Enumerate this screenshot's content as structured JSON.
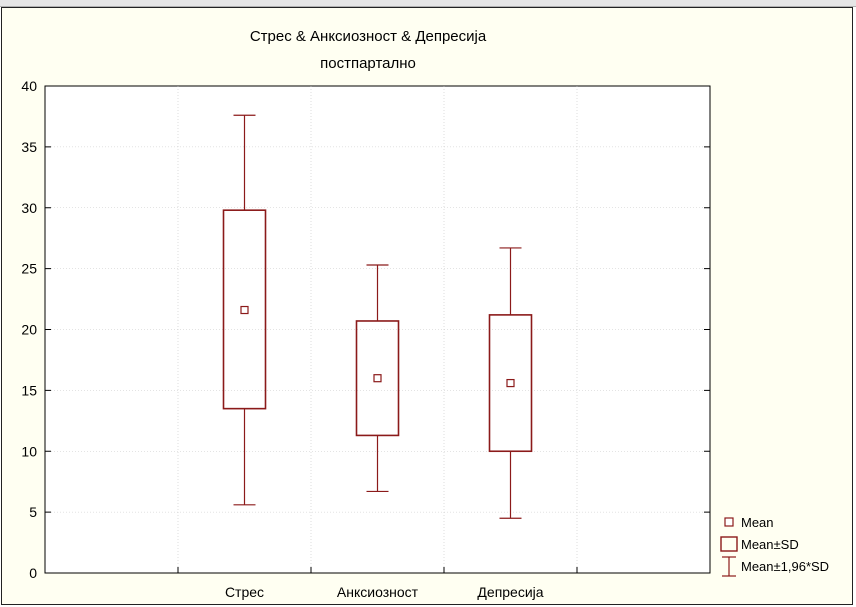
{
  "chart_data": {
    "type": "box",
    "title": "Стрес & Анксиозност & Депресија",
    "subtitle": "постпартално",
    "xlabel": "",
    "ylabel": "",
    "ylim": [
      0,
      40
    ],
    "yticks": [
      0,
      5,
      10,
      15,
      20,
      25,
      30,
      35,
      40
    ],
    "grid": true,
    "legend_position": "bottom-right",
    "categories": [
      "Стрес",
      "Анксиозност",
      "Депресија"
    ],
    "series": [
      {
        "category": "Стрес",
        "mean": 21.6,
        "sd_low": 13.5,
        "sd_high": 29.8,
        "ci_low": 5.6,
        "ci_high": 37.6
      },
      {
        "category": "Анксиозност",
        "mean": 16.0,
        "sd_low": 11.3,
        "sd_high": 20.7,
        "ci_low": 6.7,
        "ci_high": 25.3
      },
      {
        "category": "Депресија",
        "mean": 15.6,
        "sd_low": 10.0,
        "sd_high": 21.2,
        "ci_low": 4.5,
        "ci_high": 26.7
      }
    ],
    "legend": [
      "Mean",
      "Mean±SD",
      "Mean±1,96*SD"
    ],
    "color": "#8b1a1a"
  }
}
